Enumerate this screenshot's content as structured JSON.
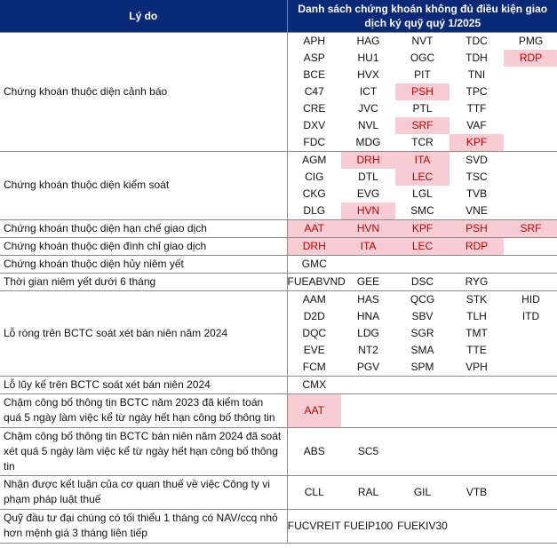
{
  "header": {
    "reason": "Lý do",
    "list": "Danh sách chứng khoán không đủ điều kiện giao dịch ký quỹ quý 1/2025"
  },
  "groups": [
    {
      "reason": "Chứng khoán thuộc diện cảnh báo",
      "rows": [
        [
          "APH",
          "HAG",
          "NVT",
          "TDC",
          "PMG"
        ],
        [
          "ASP",
          "HU1",
          "OGC",
          "TDH",
          "RDP"
        ],
        [
          "BCE",
          "HVX",
          "PIT",
          "TNI",
          ""
        ],
        [
          "C47",
          "ICT",
          "PSH",
          "TPC",
          ""
        ],
        [
          "CRE",
          "JVC",
          "PTL",
          "TTF",
          ""
        ],
        [
          "DXV",
          "NVL",
          "SRF",
          "VAF",
          ""
        ],
        [
          "FDC",
          "MDG",
          "TCR",
          "KPF",
          ""
        ]
      ],
      "highlight": [
        [
          1,
          4
        ],
        [
          3,
          2
        ],
        [
          5,
          2
        ],
        [
          6,
          3
        ]
      ]
    },
    {
      "reason": "Chứng khoán thuộc diện kiểm soát",
      "rows": [
        [
          "AGM",
          "DRH",
          "ITA",
          "SVD",
          ""
        ],
        [
          "CIG",
          "DTL",
          "LEC",
          "TSC",
          ""
        ],
        [
          "CKG",
          "EVG",
          "LGL",
          "TVB",
          ""
        ],
        [
          "DLG",
          "HVN",
          "SMC",
          "VNE",
          ""
        ]
      ],
      "highlight": [
        [
          0,
          1
        ],
        [
          0,
          2
        ],
        [
          1,
          2
        ],
        [
          3,
          1
        ]
      ]
    },
    {
      "reason": "Chứng khoán thuộc diện hạn chế giao dịch",
      "rows": [
        [
          "AAT",
          "HVN",
          "KPF",
          "PSH",
          "SRF"
        ]
      ],
      "highlight": [
        [
          0,
          0
        ],
        [
          0,
          1
        ],
        [
          0,
          2
        ],
        [
          0,
          3
        ],
        [
          0,
          4
        ]
      ]
    },
    {
      "reason": "Chứng khoán thuộc diện đình chỉ giao dịch",
      "rows": [
        [
          "DRH",
          "ITA",
          "LEC",
          "RDP",
          ""
        ]
      ],
      "highlight": [
        [
          0,
          0
        ],
        [
          0,
          1
        ],
        [
          0,
          2
        ],
        [
          0,
          3
        ]
      ]
    },
    {
      "reason": "Chứng khoán thuộc diện hủy niêm yết",
      "rows": [
        [
          "GMC",
          "",
          "",
          "",
          ""
        ]
      ],
      "highlight": []
    },
    {
      "reason": "Thời gian niêm yết dưới 6 tháng",
      "rows": [
        [
          "FUEABVND",
          "GEE",
          "DSC",
          "RYG",
          ""
        ]
      ],
      "highlight": []
    },
    {
      "reason": "Lỗ ròng trên BCTC soát xét bán niên năm 2024",
      "rows": [
        [
          "AAM",
          "HAS",
          "QCG",
          "STK",
          "HID"
        ],
        [
          "D2D",
          "HNA",
          "SBV",
          "TLH",
          "ITD"
        ],
        [
          "DQC",
          "LDG",
          "SGR",
          "TMT",
          ""
        ],
        [
          "EVE",
          "NT2",
          "SMA",
          "TTE",
          ""
        ],
        [
          "FCM",
          "PGV",
          "SPM",
          "VPH",
          ""
        ]
      ],
      "highlight": []
    },
    {
      "reason": "Lỗ lũy kế trên BCTC soát xét bán niên 2024",
      "rows": [
        [
          "CMX",
          "",
          "",
          "",
          ""
        ]
      ],
      "highlight": []
    },
    {
      "reason": "Chậm công bố thông tin BCTC năm 2023 đã kiểm toán quá 5 ngày làm việc kể từ ngày hết hạn công bố thông tin",
      "rows": [
        [
          "AAT",
          "",
          "",
          "",
          ""
        ]
      ],
      "highlight": [
        [
          0,
          0
        ]
      ],
      "height": 38
    },
    {
      "reason": "Chậm công bố thông tin BCTC bán niên năm 2024 đã soát xét quá 5 ngày làm việc kể từ ngày hết hạn công bố thông tin",
      "rows": [
        [
          "ABS",
          "SC5",
          "",
          "",
          ""
        ]
      ],
      "highlight": [],
      "height": 54
    },
    {
      "reason": "Nhận được kết luận của cơ quan thuế về việc Công ty vi phạm pháp luật thuế",
      "rows": [
        [
          "CLL",
          "RAL",
          "GIL",
          "VTB",
          ""
        ]
      ],
      "highlight": [],
      "height": 38
    },
    {
      "reason": "Quỹ đầu tư đại chúng có tối thiểu 1 tháng có NAV/ccq nhỏ hơn mệnh giá 3 tháng liên tiếp",
      "rows": [
        [
          "FUCVREIT",
          "FUEIP100",
          "FUEKIV30",
          "",
          ""
        ]
      ],
      "highlight": [],
      "height": 38
    }
  ]
}
